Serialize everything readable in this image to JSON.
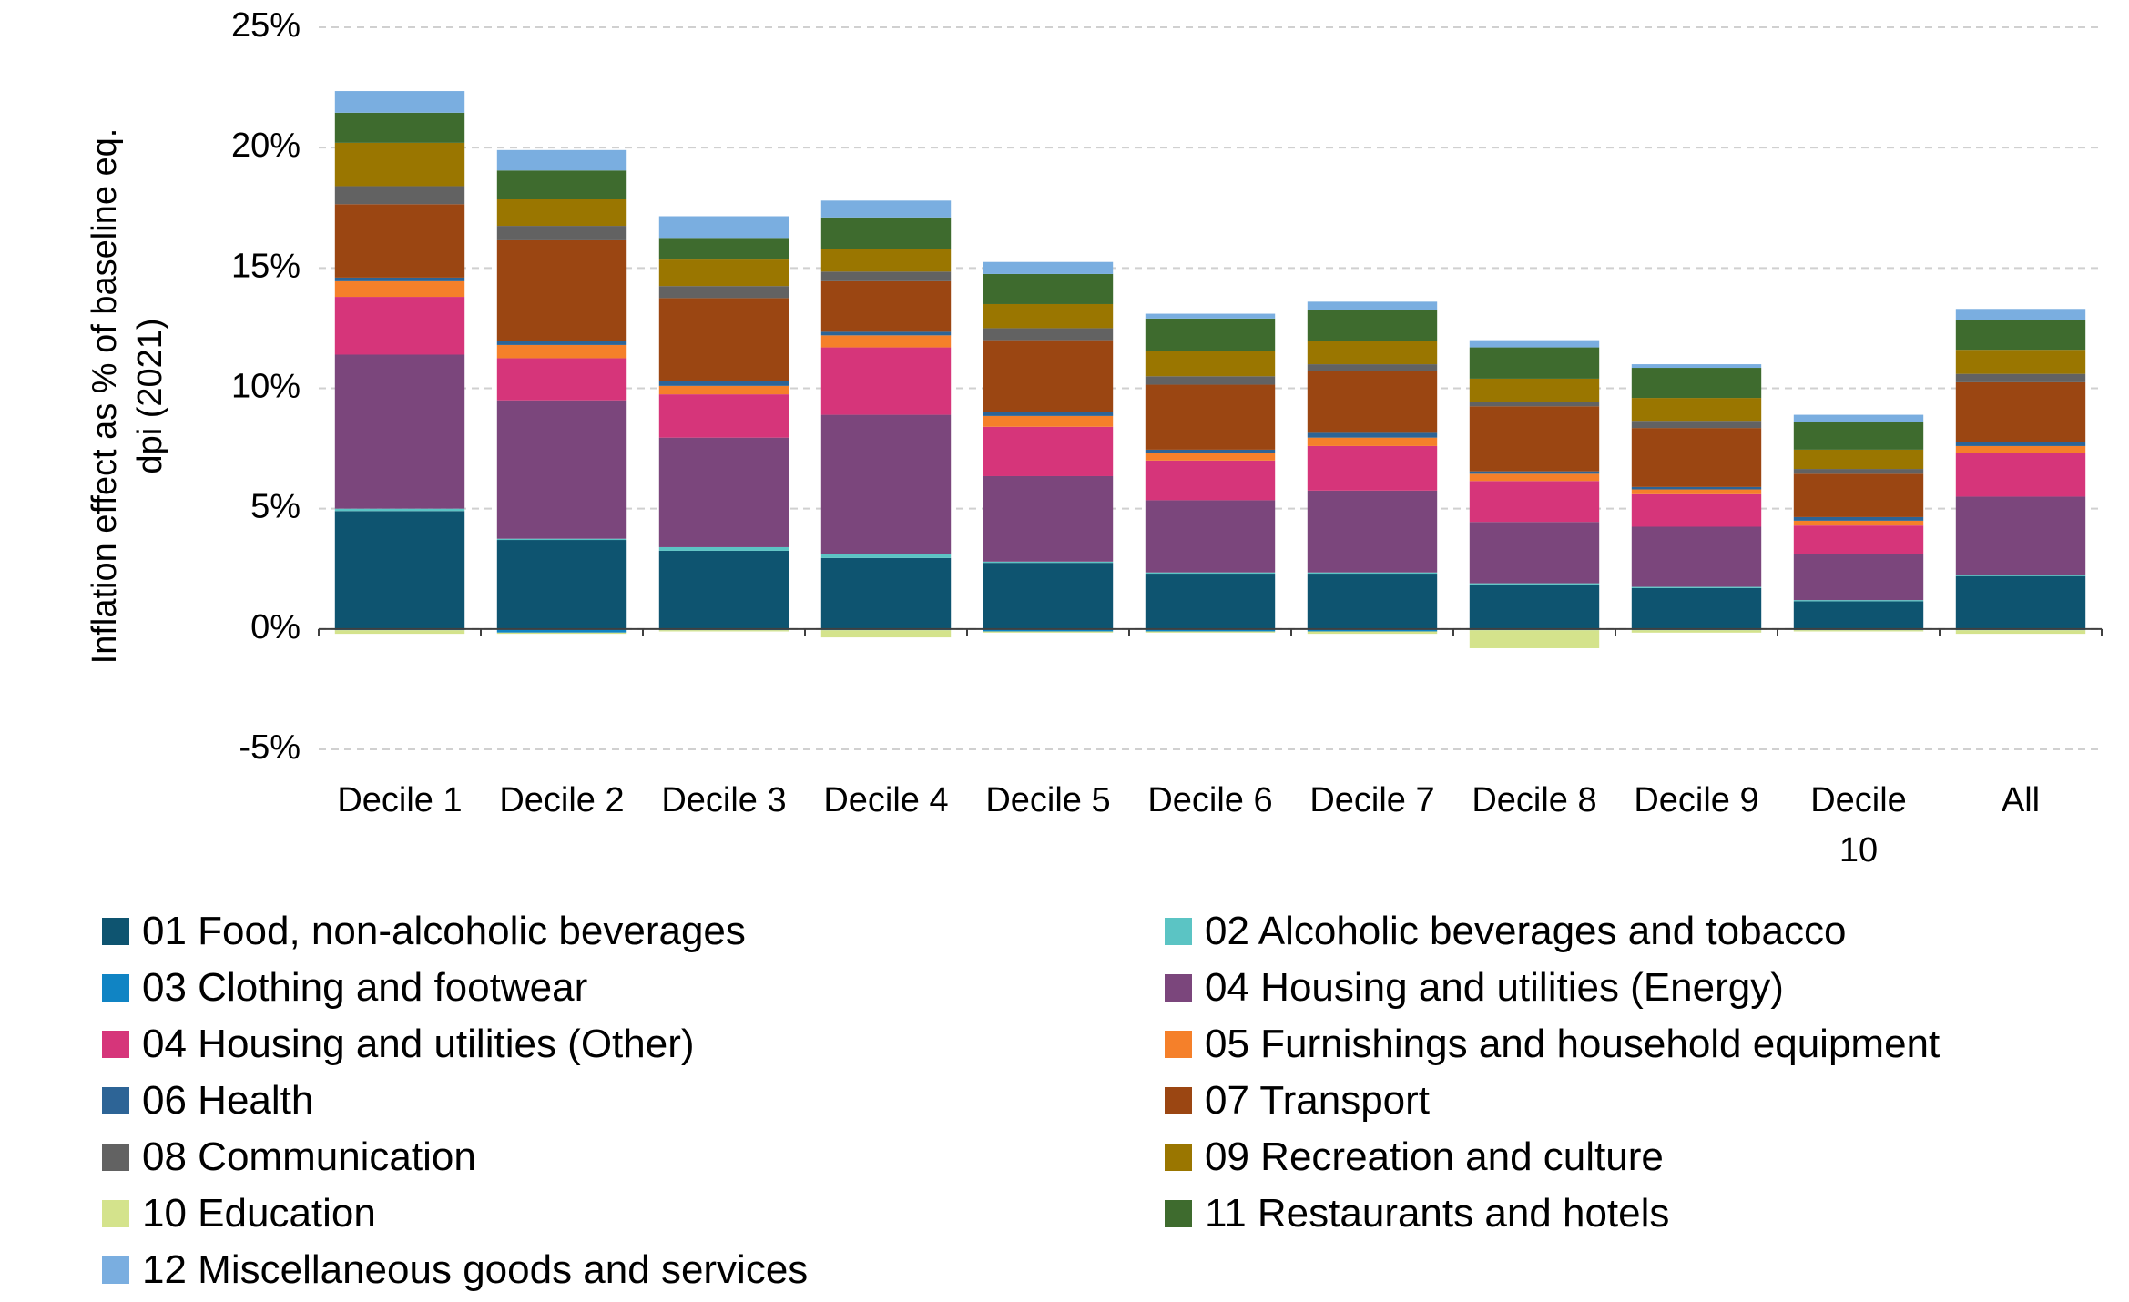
{
  "chart_data": {
    "type": "stacked_bar",
    "y_label": "Inflation effect as % of baseline eq. dpi (2021)",
    "categories": [
      "Decile 1",
      "Decile 2",
      "Decile 3",
      "Decile 4",
      "Decile 5",
      "Decile 6",
      "Decile 7",
      "Decile 8",
      "Decile 9",
      "Decile 10",
      "All"
    ],
    "ylim": [
      -5,
      25
    ],
    "yticks": [
      {
        "value": -5,
        "label": "-5%"
      },
      {
        "value": 0,
        "label": "0%"
      },
      {
        "value": 5,
        "label": "5%"
      },
      {
        "value": 10,
        "label": "10%"
      },
      {
        "value": 15,
        "label": "15%"
      },
      {
        "value": 20,
        "label": "20%"
      },
      {
        "value": 25,
        "label": "25%"
      }
    ],
    "grid": true,
    "series": [
      {
        "name": "01 Food, non-alcoholic beverages",
        "color": "#0e5470",
        "values": [
          4.9,
          3.7,
          3.25,
          2.95,
          2.75,
          2.3,
          2.3,
          1.85,
          1.7,
          1.15,
          2.2
        ]
      },
      {
        "name": "02 Alcoholic beverages and tobacco",
        "color": "#5bc4c4",
        "values": [
          0.1,
          0.05,
          0.15,
          0.15,
          0.05,
          0.05,
          0.05,
          0.05,
          0.05,
          0.05,
          0.05
        ]
      },
      {
        "name": "03 Clothing and footwear",
        "color": "#1084c4",
        "values": [
          -0.05,
          -0.15,
          -0.05,
          -0.05,
          -0.1,
          -0.1,
          -0.1,
          -0.05,
          -0.05,
          -0.05,
          -0.05
        ]
      },
      {
        "name": "04 Housing and utilities (Energy)",
        "color": "#7b467c",
        "values": [
          6.4,
          5.75,
          4.55,
          5.8,
          3.55,
          3.0,
          3.4,
          2.55,
          2.5,
          1.9,
          3.25
        ]
      },
      {
        "name": "04 Housing and utilities (Other)",
        "color": "#d6357a",
        "values": [
          2.4,
          1.75,
          1.8,
          2.8,
          2.05,
          1.65,
          1.85,
          1.7,
          1.35,
          1.2,
          1.8
        ]
      },
      {
        "name": "05 Furnishings and household equipment",
        "color": "#f5802a",
        "values": [
          0.65,
          0.55,
          0.35,
          0.5,
          0.45,
          0.3,
          0.35,
          0.3,
          0.2,
          0.2,
          0.3
        ]
      },
      {
        "name": "06 Health",
        "color": "#2d6496",
        "values": [
          0.15,
          0.15,
          0.2,
          0.15,
          0.15,
          0.15,
          0.2,
          0.1,
          0.1,
          0.15,
          0.15
        ]
      },
      {
        "name": "07 Transport",
        "color": "#9b4612",
        "values": [
          3.05,
          4.2,
          3.45,
          2.1,
          3.0,
          2.7,
          2.55,
          2.7,
          2.45,
          1.8,
          2.5
        ]
      },
      {
        "name": "08 Communication",
        "color": "#626262",
        "values": [
          0.75,
          0.6,
          0.5,
          0.4,
          0.5,
          0.35,
          0.3,
          0.2,
          0.3,
          0.2,
          0.35
        ]
      },
      {
        "name": "09 Recreation and culture",
        "color": "#9a7600",
        "values": [
          1.8,
          1.1,
          1.1,
          0.95,
          1.0,
          1.05,
          0.95,
          0.95,
          0.95,
          0.8,
          1.0
        ]
      },
      {
        "name": "10 Education",
        "color": "#d4e38c",
        "values": [
          -0.15,
          -0.05,
          -0.05,
          -0.3,
          -0.05,
          -0.05,
          -0.1,
          -0.75,
          -0.1,
          -0.05,
          -0.15
        ]
      },
      {
        "name": "11 Restaurants and hotels",
        "color": "#3e6b2e",
        "values": [
          1.25,
          1.2,
          0.9,
          1.3,
          1.25,
          1.35,
          1.3,
          1.3,
          1.25,
          1.15,
          1.25
        ]
      },
      {
        "name": "12 Miscellaneous goods and services",
        "color": "#7aaee0",
        "values": [
          0.9,
          0.85,
          0.9,
          0.7,
          0.5,
          0.2,
          0.35,
          0.3,
          0.15,
          0.3,
          0.45
        ]
      }
    ]
  }
}
